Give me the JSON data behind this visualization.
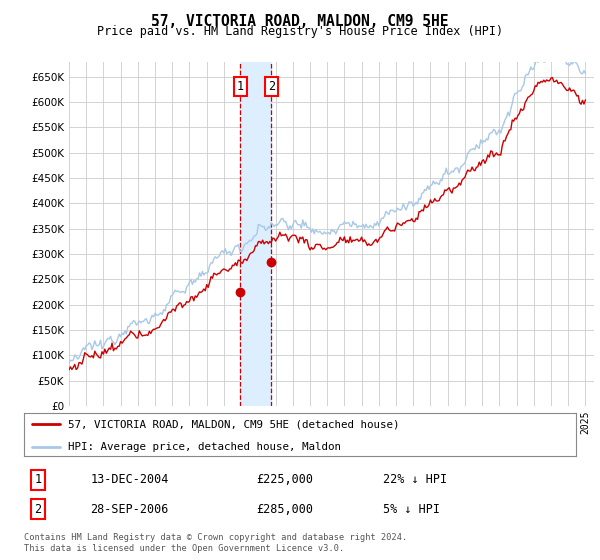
{
  "title": "57, VICTORIA ROAD, MALDON, CM9 5HE",
  "subtitle": "Price paid vs. HM Land Registry's House Price Index (HPI)",
  "ylim": [
    0,
    680000
  ],
  "yticks": [
    0,
    50000,
    100000,
    150000,
    200000,
    250000,
    300000,
    350000,
    400000,
    450000,
    500000,
    550000,
    600000,
    650000
  ],
  "sale1_date": 2004.95,
  "sale1_price": 225000,
  "sale1_label": "1",
  "sale2_date": 2006.75,
  "sale2_price": 285000,
  "sale2_label": "2",
  "hpi_color": "#a8c8e8",
  "price_color": "#cc0000",
  "highlight_color": "#ddeeff",
  "legend_label1": "57, VICTORIA ROAD, MALDON, CM9 5HE (detached house)",
  "legend_label2": "HPI: Average price, detached house, Maldon",
  "table_row1_num": "1",
  "table_row1_date": "13-DEC-2004",
  "table_row1_price": "£225,000",
  "table_row1_hpi": "22% ↓ HPI",
  "table_row2_num": "2",
  "table_row2_date": "28-SEP-2006",
  "table_row2_price": "£285,000",
  "table_row2_hpi": "5% ↓ HPI",
  "footnote": "Contains HM Land Registry data © Crown copyright and database right 2024.\nThis data is licensed under the Open Government Licence v3.0.",
  "background_color": "#ffffff"
}
